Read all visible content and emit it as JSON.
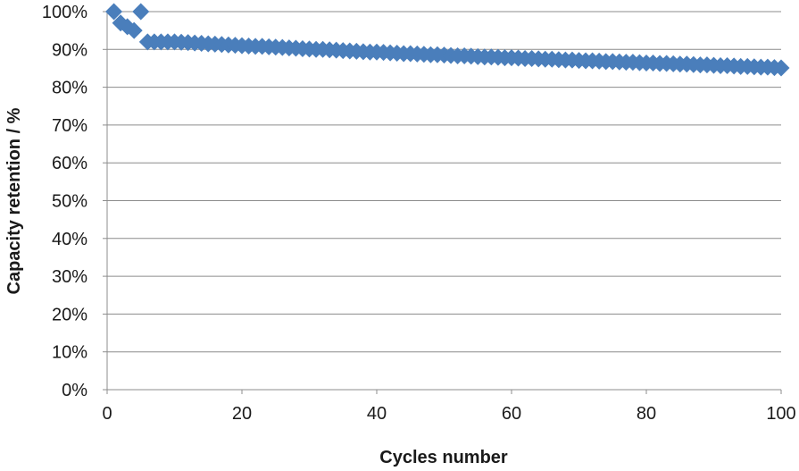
{
  "chart_data": {
    "type": "scatter",
    "title": "",
    "xlabel": "Cycles number",
    "ylabel": "Capacity retention / %",
    "xlim": [
      0,
      100
    ],
    "ylim": [
      0,
      100
    ],
    "x_ticks": [
      0,
      20,
      40,
      60,
      80,
      100
    ],
    "y_ticks": [
      0,
      10,
      20,
      30,
      40,
      50,
      60,
      70,
      80,
      90,
      100
    ],
    "x_tick_labels": [
      "0",
      "20",
      "40",
      "60",
      "80",
      "100"
    ],
    "y_tick_labels": [
      "0%",
      "10%",
      "20%",
      "30%",
      "40%",
      "50%",
      "60%",
      "70%",
      "80%",
      "90%",
      "100%"
    ],
    "grid": "horizontal",
    "marker": "diamond",
    "colors": {
      "series": "#4a7ebb",
      "grid": "#8c8c8c",
      "axis": "#8c8c8c"
    },
    "series": [
      {
        "x": [
          1,
          2,
          3,
          4,
          5,
          6,
          7,
          8,
          9,
          10,
          11,
          12,
          13,
          14,
          15,
          16,
          17,
          18,
          19,
          20,
          21,
          22,
          23,
          24,
          25,
          26,
          27,
          28,
          29,
          30,
          31,
          32,
          33,
          34,
          35,
          36,
          37,
          38,
          39,
          40,
          41,
          42,
          43,
          44,
          45,
          46,
          47,
          48,
          49,
          50,
          51,
          52,
          53,
          54,
          55,
          56,
          57,
          58,
          59,
          60,
          61,
          62,
          63,
          64,
          65,
          66,
          67,
          68,
          69,
          70,
          71,
          72,
          73,
          74,
          75,
          76,
          77,
          78,
          79,
          80,
          81,
          82,
          83,
          84,
          85,
          86,
          87,
          88,
          89,
          90,
          91,
          92,
          93,
          94,
          95,
          96,
          97,
          98,
          99,
          100
        ],
        "y": [
          100,
          97,
          96,
          95,
          100,
          92,
          92,
          92,
          92,
          92,
          91.9,
          91.8,
          91.7,
          91.6,
          91.5,
          91.4,
          91.3,
          91.2,
          91.1,
          91.0,
          90.9,
          90.8,
          90.8,
          90.7,
          90.6,
          90.5,
          90.4,
          90.3,
          90.2,
          90.1,
          90.0,
          90.0,
          89.9,
          89.8,
          89.7,
          89.6,
          89.5,
          89.4,
          89.3,
          89.3,
          89.2,
          89.1,
          89.0,
          88.9,
          88.9,
          88.8,
          88.7,
          88.6,
          88.6,
          88.5,
          88.4,
          88.3,
          88.3,
          88.2,
          88.1,
          88.0,
          88.0,
          87.9,
          87.8,
          87.8,
          87.7,
          87.6,
          87.6,
          87.5,
          87.4,
          87.4,
          87.3,
          87.2,
          87.2,
          87.1,
          87.0,
          87.0,
          86.9,
          86.8,
          86.8,
          86.7,
          86.6,
          86.6,
          86.5,
          86.4,
          86.4,
          86.3,
          86.3,
          86.2,
          86.1,
          86.1,
          86.0,
          85.9,
          85.9,
          85.8,
          85.7,
          85.7,
          85.6,
          85.5,
          85.5,
          85.4,
          85.3,
          85.3,
          85.2,
          85.1
        ]
      }
    ]
  }
}
